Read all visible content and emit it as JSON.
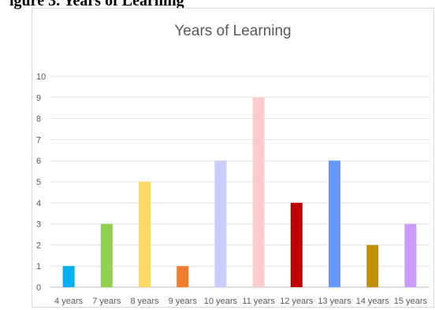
{
  "caption": {
    "text": "igure 3. Years of Learning"
  },
  "chart_data": {
    "type": "bar",
    "title": "Years of Learning",
    "xlabel": "",
    "ylabel": "",
    "categories": [
      "4 years",
      "7 years",
      "8 years",
      "9 years",
      "10 years",
      "11 years",
      "12 years",
      "13 years",
      "14 years",
      "15 years"
    ],
    "values": [
      1,
      3,
      5,
      1,
      6,
      9,
      4,
      6,
      2,
      3
    ],
    "colors": [
      "#00b0f0",
      "#92d050",
      "#ffd966",
      "#ed7d31",
      "#ccccff",
      "#ffcccc",
      "#c00000",
      "#6699ff",
      "#bf9000",
      "#cc99ff"
    ],
    "ylim": [
      0,
      10
    ],
    "yticks": [
      0,
      1,
      2,
      3,
      4,
      5,
      6,
      7,
      8,
      9,
      10
    ],
    "grid": true,
    "legend": "none"
  }
}
